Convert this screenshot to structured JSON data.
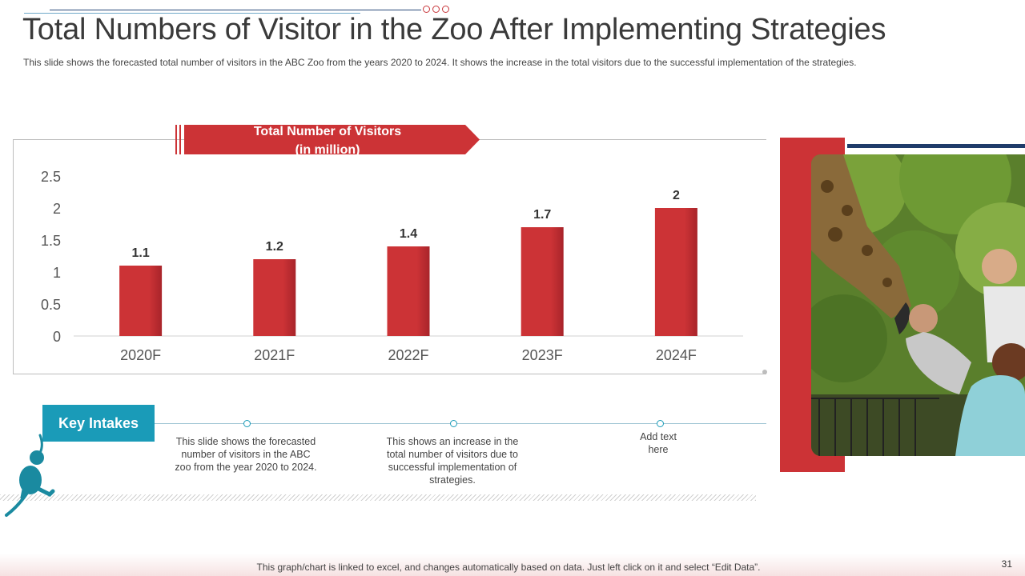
{
  "title": "Total Numbers of Visitor in the Zoo After Implementing Strategies",
  "subtitle": "This slide shows the forecasted total number of visitors in the ABC Zoo from the years 2020 to 2024. It shows the increase in the total visitors due to the successful implementation of the strategies.",
  "banner": {
    "line1": "Total Number of Visitors",
    "line2": "(in million)"
  },
  "chart_data": {
    "type": "bar",
    "title": "Total Number of Visitors (in million)",
    "categories": [
      "2020F",
      "2021F",
      "2022F",
      "2023F",
      "2024F"
    ],
    "values": [
      1.1,
      1.2,
      1.4,
      1.7,
      2
    ],
    "value_labels": [
      "1.1",
      "1.2",
      "1.4",
      "1.7",
      "2"
    ],
    "yticks": [
      0,
      0.5,
      1,
      1.5,
      2,
      2.5
    ],
    "ytick_labels": [
      "0",
      "0.5",
      "1",
      "1.5",
      "2",
      "2.5"
    ],
    "ylim": [
      0,
      2.5
    ],
    "xlabel": "",
    "ylabel": "",
    "bar_color": "#cc3336",
    "grid": false
  },
  "key_intakes": {
    "label": "Key Intakes",
    "items": [
      {
        "text": "This slide shows the forecasted number of visitors in the ABC zoo from the year 2020 to 2024."
      },
      {
        "text": "This shows an increase in the total number of visitors due to successful implementation of strategies."
      },
      {
        "text": "Add text here"
      }
    ]
  },
  "footer": "This graph/chart is linked to excel, and changes automatically based on data. Just left click on it and select “Edit Data”.",
  "page_number": "31",
  "colors": {
    "accent_red": "#cc3336",
    "accent_teal": "#1a9bb8",
    "navy": "#1f3c6a"
  }
}
